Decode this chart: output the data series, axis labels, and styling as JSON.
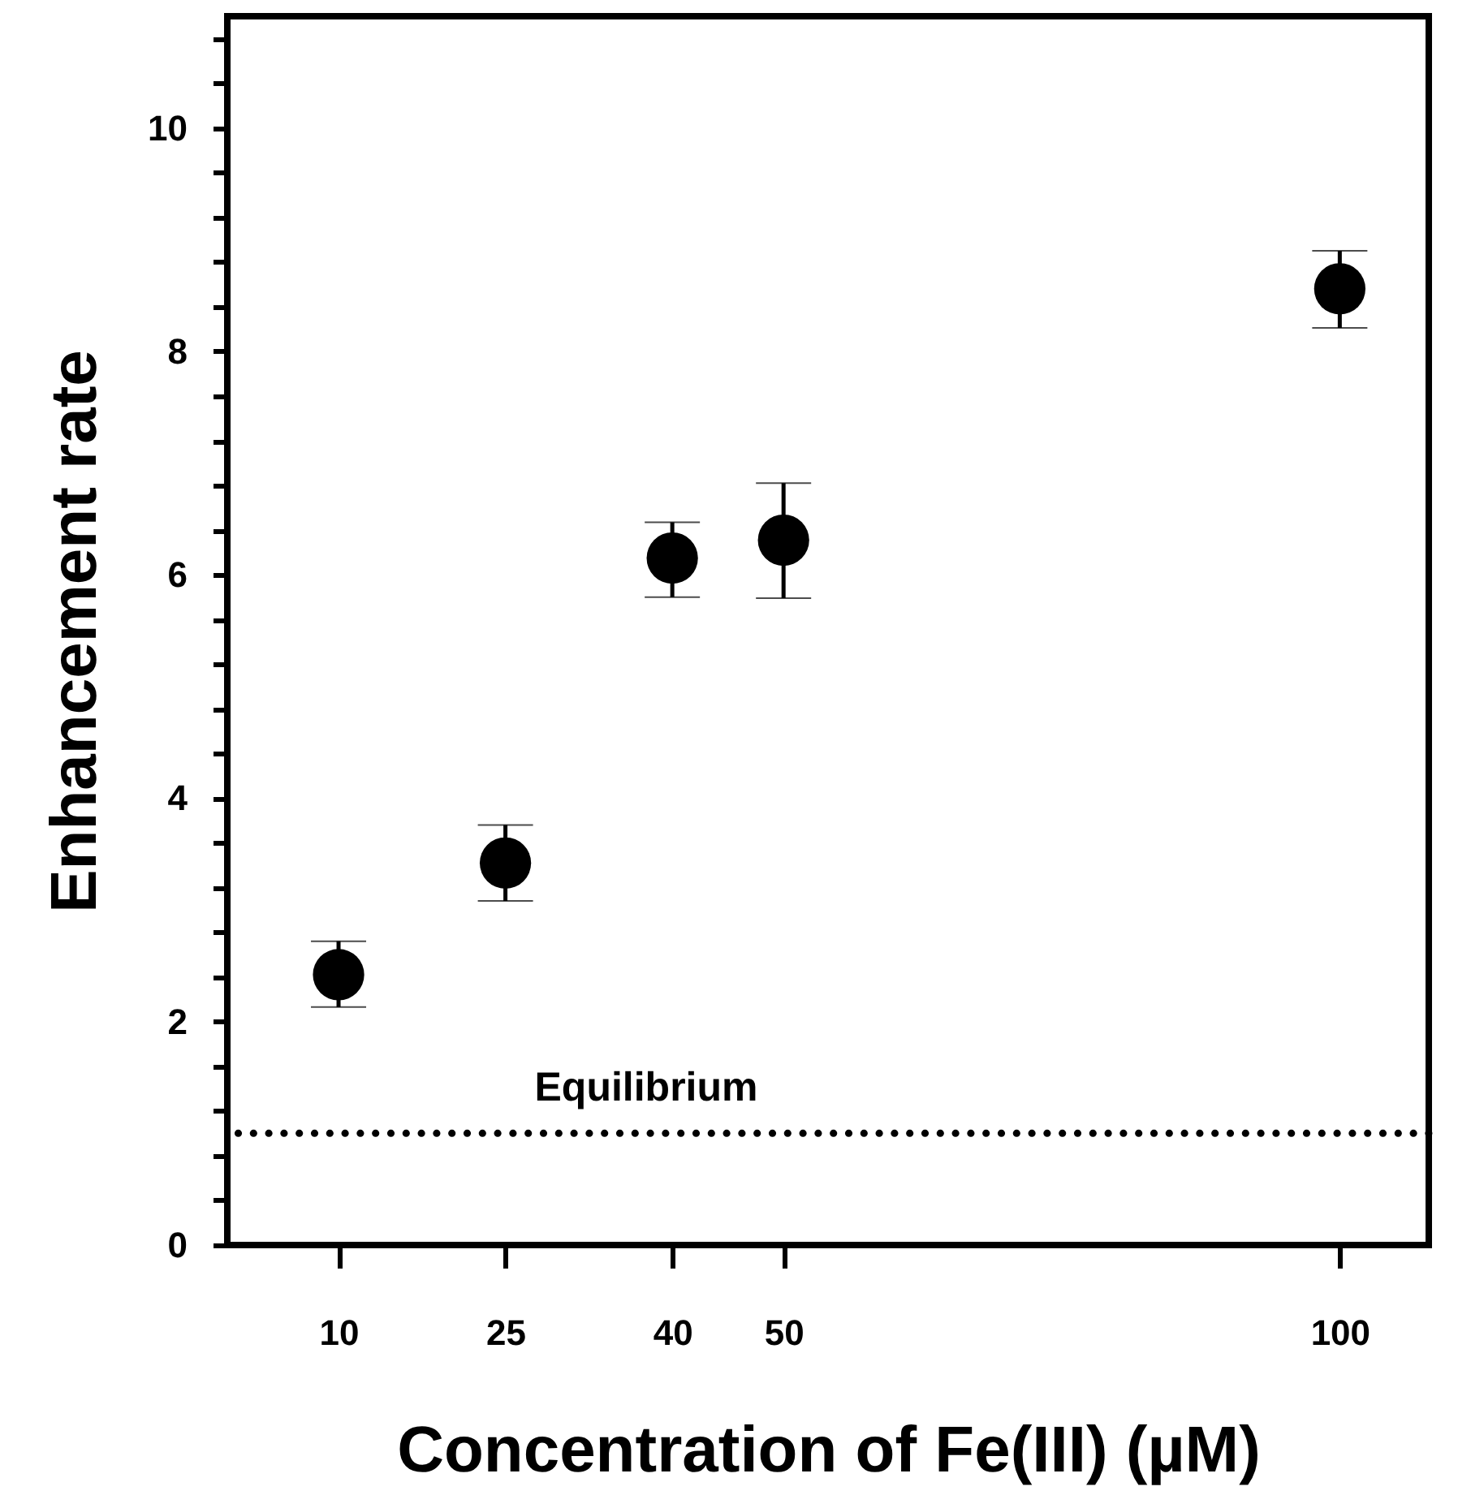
{
  "chart_data": {
    "type": "scatter",
    "xlabel": "Concentration of Fe(III) (µM)",
    "ylabel": "Enhancement rate",
    "x": [
      10,
      25,
      40,
      50,
      100
    ],
    "series": [
      {
        "color": "#000000",
        "values": [
          2.42,
          3.42,
          6.15,
          6.31,
          8.56
        ],
        "errors": [
          [
            2.13,
            2.72
          ],
          [
            3.08,
            3.76
          ],
          [
            5.8,
            6.47
          ],
          [
            5.79,
            6.82
          ],
          [
            8.21,
            8.9
          ]
        ]
      }
    ],
    "marker": "circle",
    "xlim": [
      0,
      108
    ],
    "xticks": [
      10,
      25,
      40,
      50,
      100
    ],
    "ylim": [
      0,
      11
    ],
    "yticks": [
      0,
      {
        "value": 0.4,
        "label": null
      },
      {
        "value": 0.8,
        "label": null
      },
      {
        "value": 1.2,
        "label": null
      },
      {
        "value": 1.6,
        "label": null
      },
      2,
      {
        "value": 2.4,
        "label": null
      },
      {
        "value": 2.8,
        "label": null
      },
      {
        "value": 3.2,
        "label": null
      },
      {
        "value": 3.6,
        "label": null
      },
      4,
      {
        "value": 4.4,
        "label": null
      },
      {
        "value": 4.8,
        "label": null
      },
      {
        "value": 5.2,
        "label": null
      },
      {
        "value": 5.6,
        "label": null
      },
      6,
      {
        "value": 6.4,
        "label": null
      },
      {
        "value": 6.8,
        "label": null
      },
      {
        "value": 7.2,
        "label": null
      },
      {
        "value": 7.6,
        "label": null
      },
      8,
      {
        "value": 8.4,
        "label": null
      },
      {
        "value": 8.8,
        "label": null
      },
      {
        "value": 9.2,
        "label": null
      },
      {
        "value": 9.6,
        "label": null
      },
      10,
      {
        "value": 10.4,
        "label": null
      },
      {
        "value": 10.8,
        "label": null
      }
    ],
    "ref_lines": [
      {
        "axis": "y",
        "value": 1,
        "label": "Equilibrium",
        "line_style": "dotted"
      }
    ]
  }
}
